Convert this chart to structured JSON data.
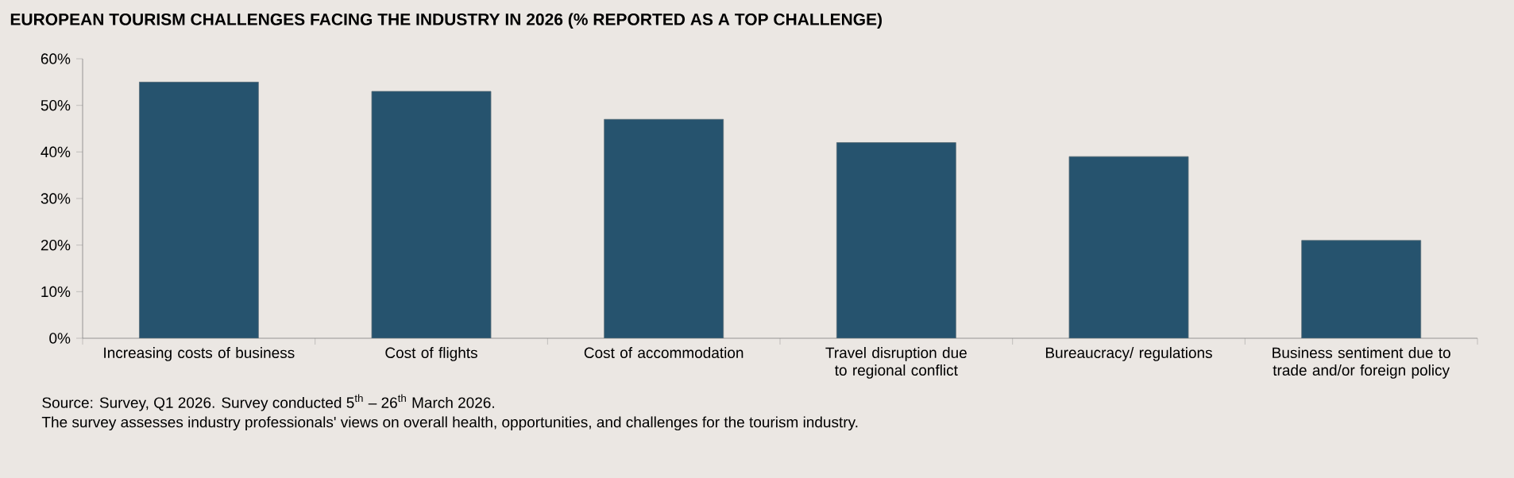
{
  "chart_data": {
    "type": "bar",
    "title": "EUROPEAN TOURISM CHALLENGES FACING THE INDUSTRY IN 2026 (% REPORTED AS A TOP CHALLENGE)",
    "categories": [
      "Increasing costs of business",
      "Cost of flights",
      "Cost of accommodation",
      "Travel disruption due to regional conflict",
      "Bureaucracy/ regulations",
      "Business sentiment due to trade and/or foreign policy"
    ],
    "values": [
      55,
      53,
      47,
      42,
      39,
      21
    ],
    "color": "#26536e",
    "ylim": [
      0,
      60
    ],
    "yticks": [
      {
        "value": 0,
        "label": "0%"
      },
      {
        "value": 10,
        "label": "10%"
      },
      {
        "value": 20,
        "label": "20%"
      },
      {
        "value": 30,
        "label": "30%"
      },
      {
        "value": 40,
        "label": "40%"
      },
      {
        "value": 50,
        "label": "50%"
      },
      {
        "value": 60,
        "label": "60%"
      }
    ],
    "annotations": [
      "Source: Survey, Q1 2026. Survey conducted 5$^{th}$ – 26$^{th}$ March 2026.",
      "The survey assesses industry professionals' views on overall health, opportunities, and challenges for the tourism industry."
    ]
  }
}
